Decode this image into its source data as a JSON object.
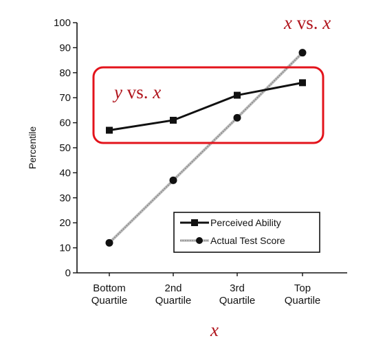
{
  "chart_data": {
    "type": "line",
    "categories": [
      [
        "Bottom",
        "Quartile"
      ],
      [
        "2nd",
        "Quartile"
      ],
      [
        "3rd",
        "Quartile"
      ],
      [
        "Top",
        "Quartile"
      ]
    ],
    "ylabel": "Percentile",
    "xlabel": "x",
    "ylim": [
      0,
      100
    ],
    "yticks": [
      0,
      10,
      20,
      30,
      40,
      50,
      60,
      70,
      80,
      90,
      100
    ],
    "grid": false,
    "series": [
      {
        "name": "Perceived Ability",
        "values": [
          57,
          61,
          71,
          76
        ],
        "marker": "square",
        "color": "#111111"
      },
      {
        "name": "Actual Test Score",
        "values": [
          12,
          37,
          62,
          88
        ],
        "marker": "circle",
        "color": "#999999"
      }
    ],
    "legend_position": "bottom-right",
    "annotations": [
      {
        "text_italic": "y",
        "text_plain": " vs. ",
        "text_italic2": "x",
        "color": "#b0141c"
      },
      {
        "text_italic": "x",
        "text_plain": " vs. ",
        "text_italic2": "x",
        "color": "#b0141c"
      }
    ],
    "highlight_box_color": "#e3131b"
  }
}
